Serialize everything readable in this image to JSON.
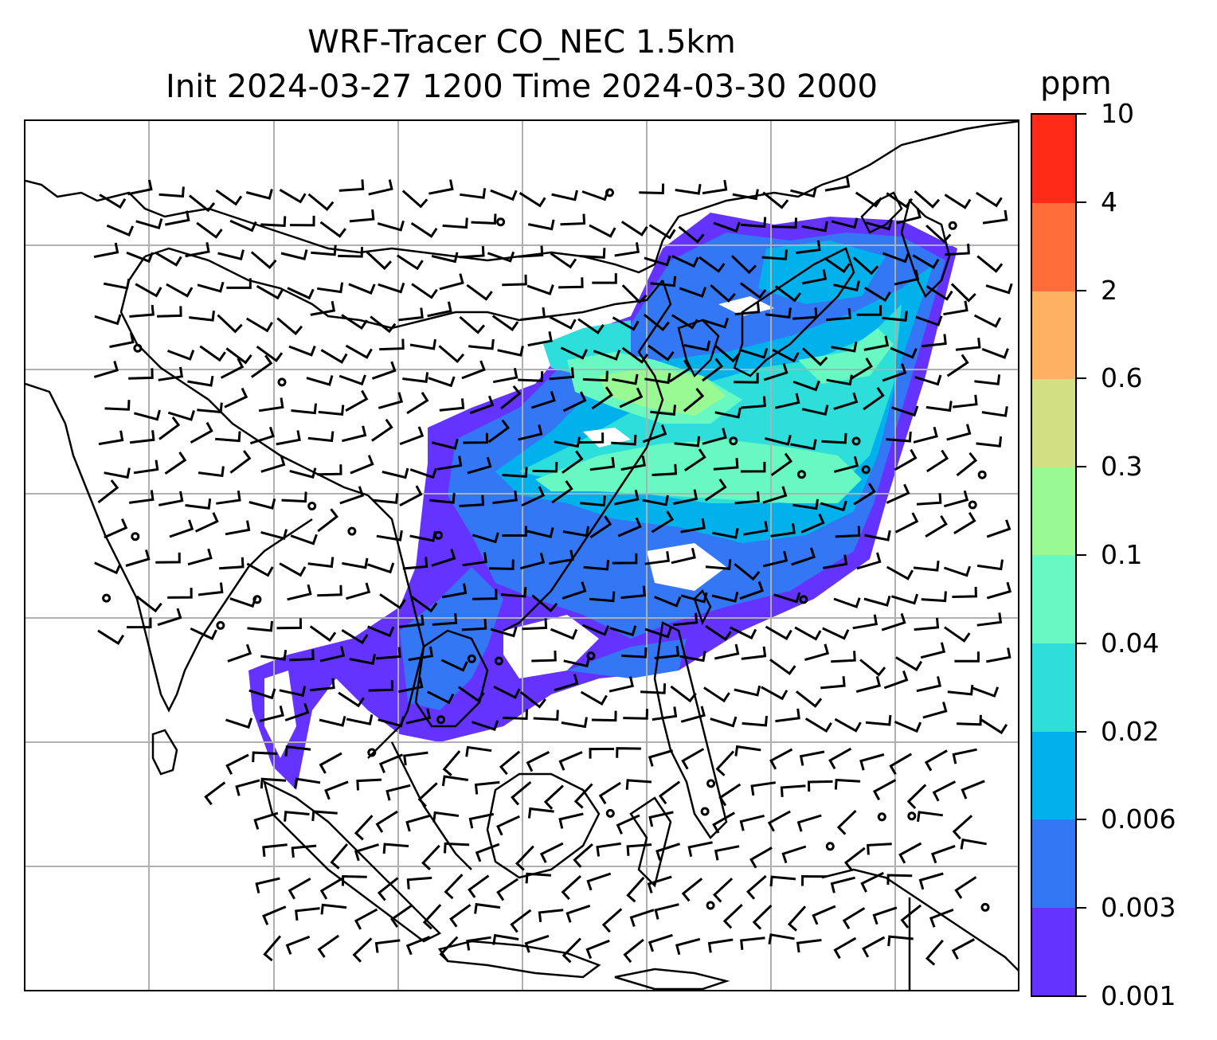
{
  "title": {
    "line1": "WRF-Tracer CO_NEC 1.5km",
    "line2": "Init 2024-03-27 1200 Time 2024-03-30 2000"
  },
  "colorbar": {
    "unit": "ppm",
    "levels": [
      "0.001",
      "0.003",
      "0.006",
      "0.02",
      "0.04",
      "0.1",
      "0.3",
      "0.6",
      "2",
      "4",
      "10"
    ],
    "colors": [
      "#6433ff",
      "#3377f5",
      "#00b1ec",
      "#2ddedb",
      "#68f8c1",
      "#99f993",
      "#d2e083",
      "#feb160",
      "#ff6e3a",
      "#ff2a17"
    ]
  },
  "map": {
    "gridlines": true,
    "coastline_color": "#000000",
    "tracer_field": "CO_NEC",
    "wind_symbol": "barb"
  }
}
